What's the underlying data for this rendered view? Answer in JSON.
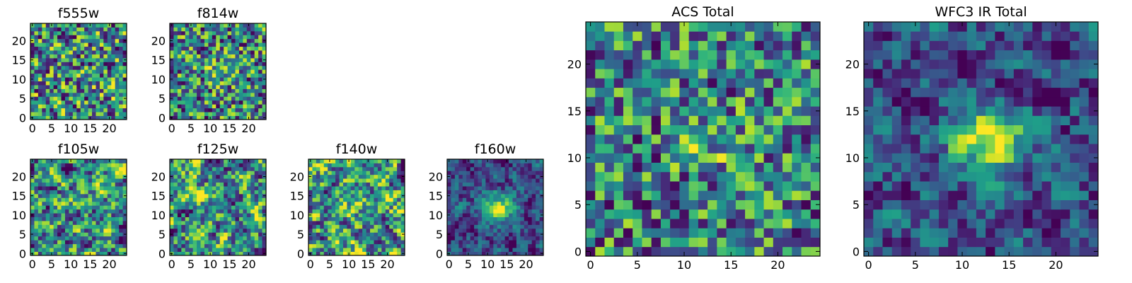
{
  "figure": {
    "description_free": true
  },
  "chart_data": [
    {
      "type": "heatmap",
      "title": "f555w",
      "grid_size": 25,
      "xticks": [
        "0",
        "5",
        "10",
        "15",
        "20"
      ],
      "yticks": [
        "0",
        "5",
        "10",
        "15",
        "20"
      ],
      "colormap": "viridis",
      "pattern": "noise",
      "seed": 11
    },
    {
      "type": "heatmap",
      "title": "f814w",
      "grid_size": 25,
      "xticks": [
        "0",
        "5",
        "10",
        "15",
        "20"
      ],
      "yticks": [
        "0",
        "5",
        "10",
        "15",
        "20"
      ],
      "colormap": "viridis",
      "pattern": "noise_faint_center",
      "seed": 23
    },
    {
      "type": "heatmap",
      "title": "f105w",
      "grid_size": 25,
      "xticks": [
        "0",
        "5",
        "10",
        "15",
        "20"
      ],
      "yticks": [
        "0",
        "5",
        "10",
        "15",
        "20"
      ],
      "colormap": "viridis",
      "pattern": "smooth_noise",
      "seed": 37
    },
    {
      "type": "heatmap",
      "title": "f125w",
      "grid_size": 25,
      "xticks": [
        "0",
        "5",
        "10",
        "15",
        "20"
      ],
      "yticks": [
        "0",
        "5",
        "10",
        "15",
        "20"
      ],
      "colormap": "viridis",
      "pattern": "smooth_noise",
      "seed": 41
    },
    {
      "type": "heatmap",
      "title": "f140w",
      "grid_size": 25,
      "xticks": [
        "0",
        "5",
        "10",
        "15",
        "20"
      ],
      "yticks": [
        "0",
        "5",
        "10",
        "15",
        "20"
      ],
      "colormap": "viridis",
      "pattern": "smooth_noise",
      "seed": 53
    },
    {
      "type": "heatmap",
      "title": "f160w",
      "grid_size": 25,
      "xticks": [
        "0",
        "5",
        "10",
        "15",
        "20"
      ],
      "yticks": [
        "0",
        "5",
        "10",
        "15",
        "20"
      ],
      "colormap": "viridis",
      "pattern": "smooth_center_bright",
      "seed": 67
    },
    {
      "type": "heatmap",
      "title": "ACS Total",
      "grid_size": 25,
      "xticks": [
        "0",
        "5",
        "10",
        "15",
        "20"
      ],
      "yticks": [
        "0",
        "5",
        "10",
        "15",
        "20"
      ],
      "colormap": "viridis",
      "pattern": "noise_faint_center",
      "seed": 79
    },
    {
      "type": "heatmap",
      "title": "WFC3 IR Total",
      "grid_size": 25,
      "xticks": [
        "0",
        "5",
        "10",
        "15",
        "20"
      ],
      "yticks": [
        "0",
        "5",
        "10",
        "15",
        "20"
      ],
      "colormap": "viridis",
      "pattern": "smooth_center_bright",
      "seed": 97
    }
  ]
}
